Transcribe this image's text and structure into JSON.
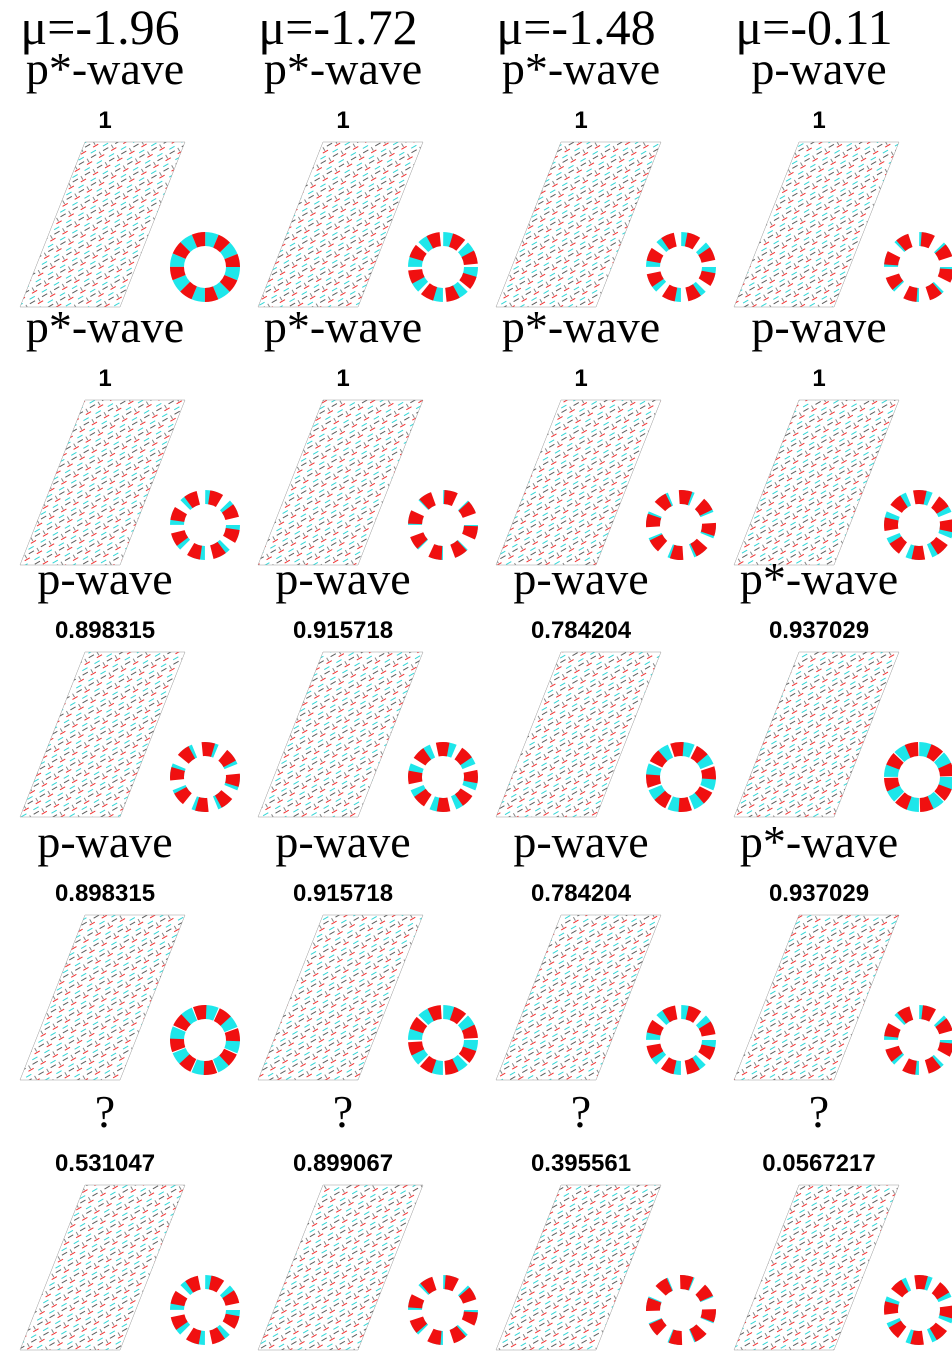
{
  "columns": [
    {
      "header": "μ=-1.96"
    },
    {
      "header": "μ=-1.72"
    },
    {
      "header": "μ=-1.48"
    },
    {
      "header": "μ=-0.11"
    }
  ],
  "rows": [
    [
      {
        "label": "p*-wave",
        "value": "1"
      },
      {
        "label": "p*-wave",
        "value": "1"
      },
      {
        "label": "p*-wave",
        "value": "1"
      },
      {
        "label": "p-wave",
        "value": "1"
      }
    ],
    [
      {
        "label": "p*-wave",
        "value": "1"
      },
      {
        "label": "p*-wave",
        "value": "1"
      },
      {
        "label": "p*-wave",
        "value": "1"
      },
      {
        "label": "p-wave",
        "value": "1"
      }
    ],
    [
      {
        "label": "p-wave",
        "value": "0.898315"
      },
      {
        "label": "p-wave",
        "value": "0.915718"
      },
      {
        "label": "p-wave",
        "value": "0.784204"
      },
      {
        "label": "p*-wave",
        "value": "0.937029"
      }
    ],
    [
      {
        "label": "p-wave",
        "value": "0.898315"
      },
      {
        "label": "p-wave",
        "value": "0.915718"
      },
      {
        "label": "p-wave",
        "value": "0.784204"
      },
      {
        "label": "p*-wave",
        "value": "0.937029"
      }
    ],
    [
      {
        "label": "?",
        "value": "0.531047"
      },
      {
        "label": "?",
        "value": "0.899067"
      },
      {
        "label": "?",
        "value": "0.395561"
      },
      {
        "label": "?",
        "value": "0.0567217"
      }
    ]
  ]
}
